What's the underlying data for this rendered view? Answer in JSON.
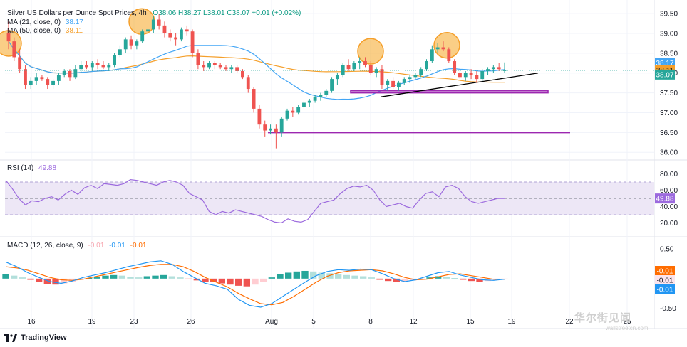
{
  "header": {
    "symbol": "Silver US Dollars per Ounce Spot Prices, 4h",
    "ohlc_text": "O38.06 H38.27 L38.01 C38.07 +0.01 (+0.02%)",
    "ma21_label": "MA (21, close, 0)",
    "ma21_value": "38.17",
    "ma50_label": "MA (50, close, 0)",
    "ma50_value": "38.11"
  },
  "rsi_legend": {
    "label": "RSI (14)",
    "value": "49.88"
  },
  "macd_legend": {
    "label": "MACD (12, 26, close, 9)",
    "v1": "-0.01",
    "v2": "-0.01",
    "v3": "-0.01"
  },
  "price_badges": {
    "ma21": "38.17",
    "ma50": "38.11",
    "last": "38.07",
    "rsi": "49.88",
    "macd1": "-0.01",
    "macd2": "-0.01",
    "macd3": "-0.01"
  },
  "brand": {
    "logo_text": "TradingView"
  },
  "watermark": {
    "text": "华尔街见闻",
    "sub": "wallstreetcn.com"
  },
  "colors": {
    "up": "#26a69a",
    "down": "#ef5350",
    "ma21": "#42a5f5",
    "ma50": "#f59f2a",
    "rsi": "#9c6ade",
    "hline": "#9c27b0",
    "trend": "#000000",
    "highlight": "#f59f2a"
  },
  "chart_data": [
    {
      "type": "candlestick",
      "title": "Silver US Dollars per Ounce Spot Prices, 4h",
      "x_ticks": [
        "16",
        "19",
        "23",
        "26",
        "Aug",
        "5",
        "8",
        "12",
        "15",
        "19",
        "22",
        "25"
      ],
      "y_ticks": [
        36.0,
        36.5,
        37.0,
        37.5,
        38.0,
        38.5,
        39.0,
        39.5
      ],
      "ylim": [
        35.86,
        39.7
      ],
      "last_price": 38.07,
      "series": [
        {
          "name": "MA (21, close, 0)",
          "last": 38.17
        },
        {
          "name": "MA (50, close, 0)",
          "last": 38.11
        }
      ],
      "candles": [
        [
          39.0,
          39.3,
          38.6,
          38.8
        ],
        [
          38.8,
          38.9,
          38.3,
          38.4
        ],
        [
          38.4,
          38.6,
          38.0,
          38.1
        ],
        [
          38.1,
          38.2,
          37.6,
          37.7
        ],
        [
          37.7,
          37.9,
          37.6,
          37.8
        ],
        [
          37.8,
          38.0,
          37.7,
          37.9
        ],
        [
          37.9,
          37.95,
          37.8,
          37.85
        ],
        [
          37.85,
          37.9,
          37.6,
          37.7
        ],
        [
          37.7,
          37.85,
          37.6,
          37.8
        ],
        [
          37.8,
          38.0,
          37.7,
          37.95
        ],
        [
          37.95,
          38.1,
          37.9,
          38.05
        ],
        [
          38.05,
          38.1,
          37.8,
          37.9
        ],
        [
          37.9,
          38.2,
          37.85,
          38.1
        ],
        [
          38.1,
          38.3,
          38.0,
          38.2
        ],
        [
          38.2,
          38.3,
          38.1,
          38.15
        ],
        [
          38.15,
          38.3,
          38.05,
          38.25
        ],
        [
          38.25,
          38.35,
          38.1,
          38.2
        ],
        [
          38.2,
          38.3,
          38.1,
          38.15
        ],
        [
          38.15,
          38.25,
          38.05,
          38.2
        ],
        [
          38.2,
          38.5,
          38.15,
          38.45
        ],
        [
          38.45,
          38.7,
          38.4,
          38.6
        ],
        [
          38.6,
          38.9,
          38.5,
          38.85
        ],
        [
          38.85,
          38.95,
          38.6,
          38.7
        ],
        [
          38.7,
          38.85,
          38.6,
          38.8
        ],
        [
          38.8,
          39.1,
          38.75,
          39.05
        ],
        [
          39.05,
          39.2,
          38.95,
          39.1
        ],
        [
          39.1,
          39.45,
          39.0,
          39.35
        ],
        [
          39.35,
          39.5,
          39.1,
          39.2
        ],
        [
          39.2,
          39.3,
          38.9,
          39.0
        ],
        [
          39.0,
          39.1,
          38.8,
          38.9
        ],
        [
          38.9,
          39.0,
          38.7,
          38.85
        ],
        [
          38.85,
          39.15,
          38.8,
          39.1
        ],
        [
          39.1,
          39.2,
          38.95,
          39.05
        ],
        [
          39.05,
          39.1,
          38.4,
          38.5
        ],
        [
          38.5,
          38.6,
          38.1,
          38.2
        ],
        [
          38.2,
          38.3,
          38.05,
          38.15
        ],
        [
          38.15,
          38.3,
          38.1,
          38.25
        ],
        [
          38.25,
          38.3,
          38.1,
          38.2
        ],
        [
          38.2,
          38.25,
          38.1,
          38.15
        ],
        [
          38.15,
          38.2,
          38.05,
          38.1
        ],
        [
          38.1,
          38.2,
          38.0,
          38.15
        ],
        [
          38.15,
          38.2,
          38.0,
          38.05
        ],
        [
          38.05,
          38.1,
          37.85,
          37.9
        ],
        [
          37.9,
          37.95,
          37.5,
          37.6
        ],
        [
          37.6,
          37.65,
          37.0,
          37.1
        ],
        [
          37.1,
          37.2,
          36.6,
          36.7
        ],
        [
          36.7,
          36.8,
          36.4,
          36.55
        ],
        [
          36.55,
          36.7,
          36.45,
          36.6
        ],
        [
          36.6,
          36.7,
          36.1,
          36.5
        ],
        [
          36.5,
          36.9,
          36.4,
          36.85
        ],
        [
          36.85,
          37.1,
          36.8,
          37.05
        ],
        [
          37.05,
          37.15,
          36.9,
          37.0
        ],
        [
          37.0,
          37.2,
          36.95,
          37.15
        ],
        [
          37.15,
          37.3,
          37.1,
          37.25
        ],
        [
          37.25,
          37.35,
          37.15,
          37.3
        ],
        [
          37.3,
          37.45,
          37.25,
          37.4
        ],
        [
          37.4,
          37.5,
          37.3,
          37.45
        ],
        [
          37.45,
          37.6,
          37.4,
          37.55
        ],
        [
          37.55,
          37.9,
          37.5,
          37.85
        ],
        [
          37.85,
          38.0,
          37.7,
          37.95
        ],
        [
          37.95,
          38.25,
          37.9,
          38.2
        ],
        [
          38.2,
          38.35,
          38.05,
          38.1
        ],
        [
          38.1,
          38.3,
          38.05,
          38.25
        ],
        [
          38.25,
          38.4,
          38.1,
          38.3
        ],
        [
          38.3,
          38.4,
          38.15,
          38.2
        ],
        [
          38.2,
          38.3,
          37.95,
          38.0
        ],
        [
          38.0,
          38.15,
          37.9,
          38.1
        ],
        [
          38.1,
          38.2,
          37.6,
          37.7
        ],
        [
          37.7,
          37.85,
          37.55,
          37.8
        ],
        [
          37.8,
          37.9,
          37.6,
          37.65
        ],
        [
          37.65,
          37.8,
          37.55,
          37.75
        ],
        [
          37.75,
          37.9,
          37.7,
          37.85
        ],
        [
          37.85,
          37.95,
          37.75,
          37.9
        ],
        [
          37.9,
          38.0,
          37.85,
          37.95
        ],
        [
          37.95,
          38.15,
          37.9,
          38.1
        ],
        [
          38.1,
          38.35,
          38.05,
          38.3
        ],
        [
          38.3,
          38.7,
          38.25,
          38.6
        ],
        [
          38.6,
          38.75,
          38.5,
          38.65
        ],
        [
          38.65,
          38.8,
          38.55,
          38.6
        ],
        [
          38.6,
          38.65,
          38.25,
          38.3
        ],
        [
          38.3,
          38.35,
          37.95,
          38.0
        ],
        [
          38.0,
          38.1,
          37.85,
          37.9
        ],
        [
          37.9,
          38.05,
          37.8,
          38.0
        ],
        [
          38.0,
          38.1,
          37.85,
          37.95
        ],
        [
          37.95,
          38.05,
          37.75,
          37.85
        ],
        [
          37.85,
          38.1,
          37.8,
          38.05
        ],
        [
          38.05,
          38.15,
          37.95,
          38.1
        ],
        [
          38.1,
          38.2,
          38.0,
          38.15
        ],
        [
          38.15,
          38.25,
          38.05,
          38.1
        ],
        [
          38.06,
          38.27,
          38.01,
          38.07
        ]
      ],
      "annotations": {
        "horizontal_levels": [
          37.55,
          37.5,
          36.5
        ],
        "trendline": [
          [
            37.4,
            38.0
          ]
        ]
      }
    },
    {
      "type": "line",
      "title": "RSI (14)",
      "y_ticks": [
        20.0,
        40.0,
        60.0,
        80.0
      ],
      "ylim": [
        10,
        90
      ],
      "band": [
        30,
        70
      ],
      "mid": 50,
      "series": [
        {
          "name": "RSI (14)",
          "values": [
            72,
            62,
            50,
            42,
            47,
            46,
            50,
            52,
            48,
            55,
            60,
            55,
            63,
            66,
            62,
            68,
            67,
            66,
            68,
            73,
            72,
            70,
            68,
            66,
            70,
            72,
            70,
            66,
            56,
            52,
            48,
            34,
            30,
            34,
            32,
            36,
            34,
            32,
            30,
            28,
            24,
            21,
            20,
            25,
            22,
            21,
            24,
            34,
            44,
            46,
            48,
            56,
            62,
            65,
            64,
            66,
            60,
            48,
            40,
            42,
            44,
            40,
            38,
            48,
            56,
            58,
            52,
            64,
            66,
            62,
            52,
            46,
            44,
            46,
            48,
            50,
            49.88
          ]
        }
      ]
    },
    {
      "type": "bar",
      "title": "MACD (12, 26, close, 9)",
      "y_ticks": [
        0.5,
        0.0,
        -0.5
      ],
      "ylim": [
        -0.6,
        0.62
      ],
      "series": [
        {
          "name": "Histogram",
          "values": [
            0.08,
            0.05,
            0.02,
            -0.02,
            -0.06,
            -0.09,
            -0.1,
            -0.08,
            -0.05,
            -0.02,
            0.01,
            0.03,
            0.05,
            0.06,
            0.05,
            0.03,
            0.02,
            0.04,
            0.05,
            0.06,
            0.04,
            0.02,
            -0.01,
            -0.03,
            -0.05,
            -0.06,
            -0.08,
            -0.1,
            -0.12,
            -0.13,
            -0.1,
            -0.06,
            0.02,
            0.08,
            0.1,
            0.12,
            0.13,
            0.12,
            0.1,
            0.09,
            0.08,
            0.06,
            0.05,
            0.04,
            0.02,
            -0.02,
            -0.04,
            -0.06,
            -0.05,
            -0.03,
            -0.01,
            0.02,
            0.04,
            0.03,
            0.01,
            -0.02,
            -0.04,
            -0.05,
            -0.04,
            -0.02,
            -0.01
          ]
        },
        {
          "name": "MACD",
          "values": [
            0.28,
            0.2,
            0.1,
            0.02,
            -0.05,
            -0.08,
            -0.04,
            0.02,
            0.06,
            0.1,
            0.15,
            0.2,
            0.24,
            0.28,
            0.3,
            0.24,
            0.12,
            0.02,
            -0.08,
            -0.12,
            -0.18,
            -0.35,
            -0.45,
            -0.48,
            -0.42,
            -0.3,
            -0.18,
            -0.06,
            0.05,
            0.12,
            0.15,
            0.14,
            0.16,
            0.15,
            0.08,
            0.0,
            -0.05,
            -0.02,
            0.04,
            0.1,
            0.12,
            0.06,
            0.02,
            -0.02,
            -0.03,
            -0.01
          ]
        },
        {
          "name": "Signal",
          "values": [
            0.2,
            0.18,
            0.14,
            0.08,
            0.02,
            -0.02,
            -0.03,
            -0.01,
            0.03,
            0.07,
            0.11,
            0.15,
            0.19,
            0.22,
            0.24,
            0.24,
            0.2,
            0.12,
            0.02,
            -0.06,
            -0.14,
            -0.25,
            -0.34,
            -0.42,
            -0.44,
            -0.4,
            -0.3,
            -0.18,
            -0.06,
            0.04,
            0.1,
            0.13,
            0.14,
            0.15,
            0.13,
            0.08,
            0.02,
            -0.02,
            -0.01,
            0.03,
            0.07,
            0.08,
            0.05,
            0.02,
            -0.01,
            -0.01
          ]
        }
      ]
    }
  ]
}
